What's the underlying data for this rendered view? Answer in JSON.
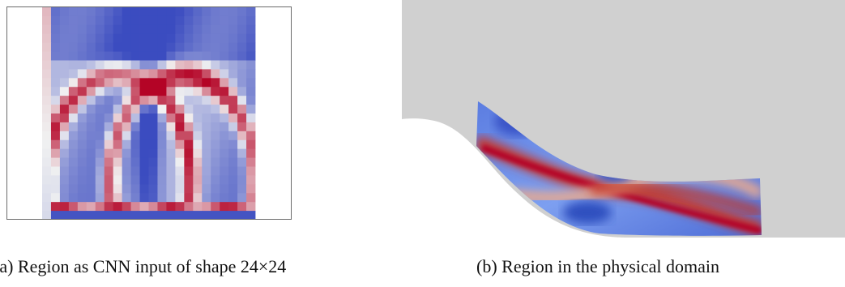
{
  "figure": {
    "panel_a": {
      "caption_label": "(a)",
      "caption_text": "Region as CNN input of shape 24×24",
      "grid_rows": 24,
      "grid_cols": 24
    },
    "panel_b": {
      "caption_label": "(b)",
      "caption_text": "Region in the physical domain"
    }
  },
  "colors": {
    "low": "#3b4cc0",
    "mid": "#f1f1f1",
    "high": "#b40426",
    "domain_gray": "#d0d0d0"
  }
}
